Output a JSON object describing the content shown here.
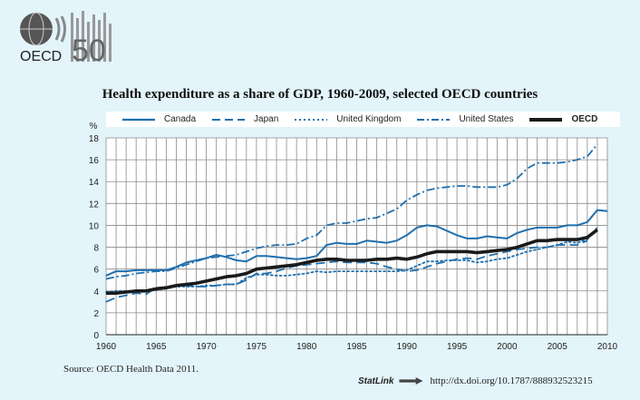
{
  "header": {
    "logo_text": "OECD",
    "logo_anniversary": "50"
  },
  "chart_data": {
    "type": "line",
    "title": "Health expenditure as a share of GDP, 1960-2009, selected OECD countries",
    "ylabel": "%",
    "xlabel": "",
    "xlim": [
      1960,
      2010
    ],
    "ylim": [
      0,
      18
    ],
    "xticks": [
      1960,
      1965,
      1970,
      1975,
      1980,
      1985,
      1990,
      1995,
      2000,
      2005,
      2010
    ],
    "yticks": [
      0,
      2,
      4,
      6,
      8,
      10,
      12,
      14,
      16,
      18
    ],
    "grid": true,
    "legend_position": "top",
    "series": [
      {
        "name": "Canada",
        "style": "solid",
        "color": "#1f6fae",
        "points": [
          [
            1960,
            5.4
          ],
          [
            1961,
            5.8
          ],
          [
            1962,
            5.8
          ],
          [
            1963,
            5.9
          ],
          [
            1964,
            5.9
          ],
          [
            1965,
            5.9
          ],
          [
            1966,
            5.9
          ],
          [
            1967,
            6.2
          ],
          [
            1968,
            6.6
          ],
          [
            1969,
            6.8
          ],
          [
            1970,
            7.0
          ],
          [
            1971,
            7.3
          ],
          [
            1972,
            7.1
          ],
          [
            1973,
            6.8
          ],
          [
            1974,
            6.7
          ],
          [
            1975,
            7.2
          ],
          [
            1976,
            7.2
          ],
          [
            1977,
            7.1
          ],
          [
            1978,
            7.0
          ],
          [
            1979,
            6.9
          ],
          [
            1980,
            7.0
          ],
          [
            1981,
            7.2
          ],
          [
            1982,
            8.2
          ],
          [
            1983,
            8.4
          ],
          [
            1984,
            8.3
          ],
          [
            1985,
            8.3
          ],
          [
            1986,
            8.6
          ],
          [
            1987,
            8.5
          ],
          [
            1988,
            8.4
          ],
          [
            1989,
            8.6
          ],
          [
            1990,
            9.1
          ],
          [
            1991,
            9.8
          ],
          [
            1992,
            10.0
          ],
          [
            1993,
            9.9
          ],
          [
            1994,
            9.5
          ],
          [
            1995,
            9.1
          ],
          [
            1996,
            8.8
          ],
          [
            1997,
            8.8
          ],
          [
            1998,
            9.0
          ],
          [
            1999,
            8.9
          ],
          [
            2000,
            8.8
          ],
          [
            2001,
            9.3
          ],
          [
            2002,
            9.6
          ],
          [
            2003,
            9.8
          ],
          [
            2004,
            9.8
          ],
          [
            2005,
            9.8
          ],
          [
            2006,
            10.0
          ],
          [
            2007,
            10.0
          ],
          [
            2008,
            10.3
          ],
          [
            2009,
            11.4
          ],
          [
            2010,
            11.3
          ]
        ]
      },
      {
        "name": "Japan",
        "style": "dashed",
        "color": "#1f6fae",
        "points": [
          [
            1960,
            3.0
          ],
          [
            1961,
            3.4
          ],
          [
            1962,
            3.6
          ],
          [
            1963,
            3.8
          ],
          [
            1964,
            3.7
          ],
          [
            1965,
            4.3
          ],
          [
            1966,
            4.3
          ],
          [
            1967,
            4.5
          ],
          [
            1968,
            4.5
          ],
          [
            1969,
            4.4
          ],
          [
            1970,
            4.4
          ],
          [
            1971,
            4.5
          ],
          [
            1972,
            4.6
          ],
          [
            1973,
            4.6
          ],
          [
            1974,
            5.0
          ],
          [
            1975,
            5.6
          ],
          [
            1976,
            5.6
          ],
          [
            1977,
            5.8
          ],
          [
            1978,
            6.1
          ],
          [
            1979,
            6.3
          ],
          [
            1980,
            6.4
          ],
          [
            1981,
            6.5
          ],
          [
            1982,
            6.6
          ],
          [
            1983,
            6.7
          ],
          [
            1984,
            6.6
          ],
          [
            1985,
            6.6
          ],
          [
            1986,
            6.6
          ],
          [
            1987,
            6.5
          ],
          [
            1988,
            6.2
          ],
          [
            1989,
            6.0
          ],
          [
            1990,
            5.8
          ],
          [
            1991,
            5.9
          ],
          [
            1992,
            6.2
          ],
          [
            1993,
            6.5
          ],
          [
            1994,
            6.7
          ],
          [
            1995,
            6.9
          ],
          [
            1996,
            7.0
          ],
          [
            1997,
            6.9
          ],
          [
            1998,
            7.2
          ],
          [
            1999,
            7.4
          ],
          [
            2000,
            7.6
          ],
          [
            2001,
            7.8
          ],
          [
            2002,
            7.9
          ],
          [
            2003,
            8.0
          ],
          [
            2004,
            8.0
          ],
          [
            2005,
            8.2
          ],
          [
            2006,
            8.2
          ],
          [
            2007,
            8.2
          ],
          [
            2008,
            8.6
          ]
        ]
      },
      {
        "name": "United Kingdom",
        "style": "dotted",
        "color": "#1f6fae",
        "points": [
          [
            1960,
            3.9
          ],
          [
            1961,
            4.0
          ],
          [
            1962,
            4.0
          ],
          [
            1963,
            4.0
          ],
          [
            1964,
            4.0
          ],
          [
            1965,
            4.1
          ],
          [
            1966,
            4.2
          ],
          [
            1967,
            4.4
          ],
          [
            1968,
            4.4
          ],
          [
            1969,
            4.4
          ],
          [
            1970,
            4.5
          ],
          [
            1971,
            4.5
          ],
          [
            1972,
            4.6
          ],
          [
            1973,
            4.6
          ],
          [
            1974,
            5.2
          ],
          [
            1975,
            5.5
          ],
          [
            1976,
            5.5
          ],
          [
            1977,
            5.4
          ],
          [
            1978,
            5.4
          ],
          [
            1979,
            5.5
          ],
          [
            1980,
            5.6
          ],
          [
            1981,
            5.8
          ],
          [
            1982,
            5.7
          ],
          [
            1983,
            5.8
          ],
          [
            1984,
            5.8
          ],
          [
            1985,
            5.8
          ],
          [
            1986,
            5.8
          ],
          [
            1987,
            5.8
          ],
          [
            1988,
            5.8
          ],
          [
            1989,
            5.8
          ],
          [
            1990,
            5.9
          ],
          [
            1991,
            6.3
          ],
          [
            1992,
            6.7
          ],
          [
            1993,
            6.7
          ],
          [
            1994,
            6.8
          ],
          [
            1995,
            6.8
          ],
          [
            1996,
            6.8
          ],
          [
            1997,
            6.6
          ],
          [
            1998,
            6.7
          ],
          [
            1999,
            6.9
          ],
          [
            2000,
            7.0
          ],
          [
            2001,
            7.3
          ],
          [
            2002,
            7.6
          ],
          [
            2003,
            7.8
          ],
          [
            2004,
            8.0
          ],
          [
            2005,
            8.2
          ],
          [
            2006,
            8.5
          ],
          [
            2007,
            8.4
          ],
          [
            2008,
            8.7
          ],
          [
            2009,
            9.8
          ]
        ]
      },
      {
        "name": "United States",
        "style": "dashdot",
        "color": "#1f6fae",
        "points": [
          [
            1960,
            5.1
          ],
          [
            1961,
            5.3
          ],
          [
            1962,
            5.4
          ],
          [
            1963,
            5.6
          ],
          [
            1964,
            5.7
          ],
          [
            1965,
            5.8
          ],
          [
            1966,
            5.8
          ],
          [
            1967,
            6.1
          ],
          [
            1968,
            6.4
          ],
          [
            1969,
            6.7
          ],
          [
            1970,
            7.0
          ],
          [
            1971,
            7.1
          ],
          [
            1972,
            7.2
          ],
          [
            1973,
            7.3
          ],
          [
            1974,
            7.6
          ],
          [
            1975,
            7.9
          ],
          [
            1976,
            8.1
          ],
          [
            1977,
            8.2
          ],
          [
            1978,
            8.2
          ],
          [
            1979,
            8.3
          ],
          [
            1980,
            8.8
          ],
          [
            1981,
            9.1
          ],
          [
            1982,
            10.0
          ],
          [
            1983,
            10.2
          ],
          [
            1984,
            10.2
          ],
          [
            1985,
            10.4
          ],
          [
            1986,
            10.6
          ],
          [
            1987,
            10.7
          ],
          [
            1988,
            11.1
          ],
          [
            1989,
            11.5
          ],
          [
            1990,
            12.3
          ],
          [
            1991,
            12.8
          ],
          [
            1992,
            13.2
          ],
          [
            1993,
            13.4
          ],
          [
            1994,
            13.5
          ],
          [
            1995,
            13.6
          ],
          [
            1996,
            13.6
          ],
          [
            1997,
            13.5
          ],
          [
            1998,
            13.5
          ],
          [
            1999,
            13.5
          ],
          [
            2000,
            13.7
          ],
          [
            2001,
            14.3
          ],
          [
            2002,
            15.2
          ],
          [
            2003,
            15.7
          ],
          [
            2004,
            15.7
          ],
          [
            2005,
            15.7
          ],
          [
            2006,
            15.8
          ],
          [
            2007,
            16.0
          ],
          [
            2008,
            16.3
          ],
          [
            2009,
            17.4
          ]
        ]
      },
      {
        "name": "OECD",
        "style": "bold",
        "color": "#1a1a1a",
        "points": [
          [
            1960,
            3.8
          ],
          [
            1961,
            3.8
          ],
          [
            1962,
            3.9
          ],
          [
            1963,
            4.0
          ],
          [
            1964,
            4.0
          ],
          [
            1965,
            4.2
          ],
          [
            1966,
            4.3
          ],
          [
            1967,
            4.5
          ],
          [
            1968,
            4.6
          ],
          [
            1969,
            4.7
          ],
          [
            1970,
            4.9
          ],
          [
            1971,
            5.1
          ],
          [
            1972,
            5.3
          ],
          [
            1973,
            5.4
          ],
          [
            1974,
            5.6
          ],
          [
            1975,
            6.0
          ],
          [
            1976,
            6.1
          ],
          [
            1977,
            6.2
          ],
          [
            1978,
            6.3
          ],
          [
            1979,
            6.4
          ],
          [
            1980,
            6.6
          ],
          [
            1981,
            6.8
          ],
          [
            1982,
            6.9
          ],
          [
            1983,
            6.9
          ],
          [
            1984,
            6.8
          ],
          [
            1985,
            6.8
          ],
          [
            1986,
            6.8
          ],
          [
            1987,
            6.9
          ],
          [
            1988,
            6.9
          ],
          [
            1989,
            7.0
          ],
          [
            1990,
            6.9
          ],
          [
            1991,
            7.1
          ],
          [
            1992,
            7.4
          ],
          [
            1993,
            7.6
          ],
          [
            1994,
            7.6
          ],
          [
            1995,
            7.6
          ],
          [
            1996,
            7.6
          ],
          [
            1997,
            7.5
          ],
          [
            1998,
            7.6
          ],
          [
            1999,
            7.7
          ],
          [
            2000,
            7.8
          ],
          [
            2001,
            8.0
          ],
          [
            2002,
            8.3
          ],
          [
            2003,
            8.6
          ],
          [
            2004,
            8.6
          ],
          [
            2005,
            8.7
          ],
          [
            2006,
            8.7
          ],
          [
            2007,
            8.7
          ],
          [
            2008,
            8.9
          ],
          [
            2009,
            9.6
          ]
        ]
      }
    ]
  },
  "footer": {
    "source": "Source:  OECD Health Data 2011.",
    "statlink_label": "StatLink",
    "statlink_url": "http://dx.doi.org/10.1787/888932523215"
  }
}
